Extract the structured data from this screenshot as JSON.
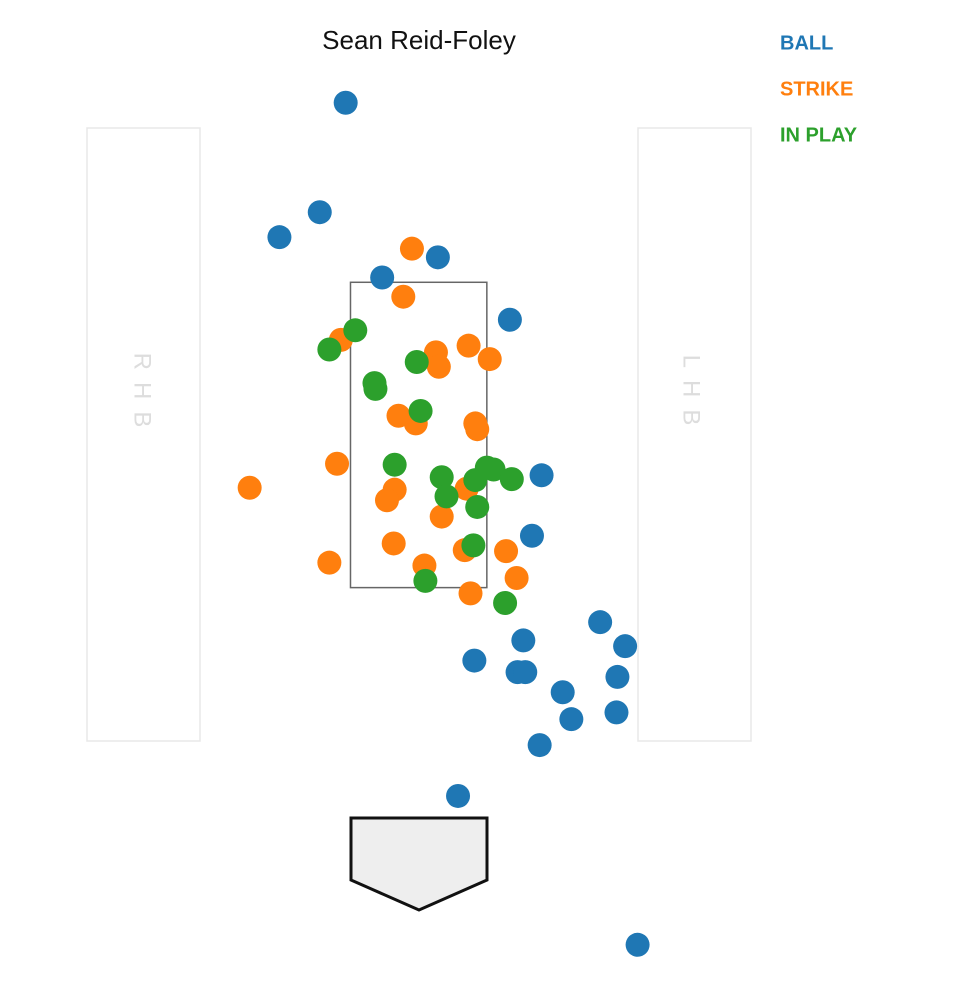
{
  "chart_data": {
    "type": "scatter",
    "title": "Sean Reid-Foley",
    "xlim": [
      -4.36,
      5.7
    ],
    "ylim": [
      -1.77,
      8.52
    ],
    "batter_boxes": [
      "RHB",
      "LHB"
    ],
    "strike_zone": {
      "x": [
        -0.71,
        0.71
      ],
      "y": [
        2.4,
        5.58
      ]
    },
    "series": [
      {
        "name": "BALL",
        "color": "#1f77b4",
        "x": [
          -0.76,
          -1.03,
          -1.45,
          0.2,
          -0.38,
          0.95,
          1.28,
          1.18,
          1.89,
          2.15,
          1.09,
          0.58,
          1.03,
          1.11,
          2.07,
          1.5,
          1.59,
          2.06,
          1.26,
          0.41,
          2.28
        ],
        "values": [
          7.45,
          6.31,
          6.05,
          5.84,
          5.63,
          5.19,
          3.57,
          2.94,
          2.04,
          1.79,
          1.85,
          1.64,
          1.52,
          1.52,
          1.47,
          1.31,
          1.03,
          1.1,
          0.76,
          0.23,
          -1.32
        ]
      },
      {
        "name": "STRIKE",
        "color": "#ff7f0e",
        "x": [
          -0.07,
          -0.16,
          -0.81,
          0.18,
          0.52,
          0.74,
          0.21,
          -0.21,
          -0.03,
          0.59,
          0.61,
          -0.85,
          -1.76,
          -0.25,
          -0.33,
          0.5,
          0.24,
          -0.26,
          0.48,
          0.91,
          -0.93,
          0.06,
          1.02,
          0.54
        ],
        "values": [
          5.93,
          5.43,
          4.98,
          4.85,
          4.92,
          4.78,
          4.7,
          4.19,
          4.11,
          4.11,
          4.05,
          3.69,
          3.44,
          3.42,
          3.31,
          3.43,
          3.14,
          2.86,
          2.79,
          2.78,
          2.66,
          2.63,
          2.5,
          2.34
        ]
      },
      {
        "name": "IN PLAY",
        "color": "#2ca02c",
        "x": [
          -0.66,
          -0.93,
          -0.02,
          -0.46,
          -0.45,
          0.02,
          -0.25,
          0.24,
          0.59,
          0.71,
          0.78,
          0.97,
          0.29,
          0.61,
          0.57,
          0.07,
          0.9
        ],
        "values": [
          5.08,
          4.88,
          4.75,
          4.53,
          4.47,
          4.24,
          3.68,
          3.55,
          3.52,
          3.65,
          3.63,
          3.53,
          3.35,
          3.24,
          2.84,
          2.47,
          2.24
        ]
      }
    ]
  }
}
